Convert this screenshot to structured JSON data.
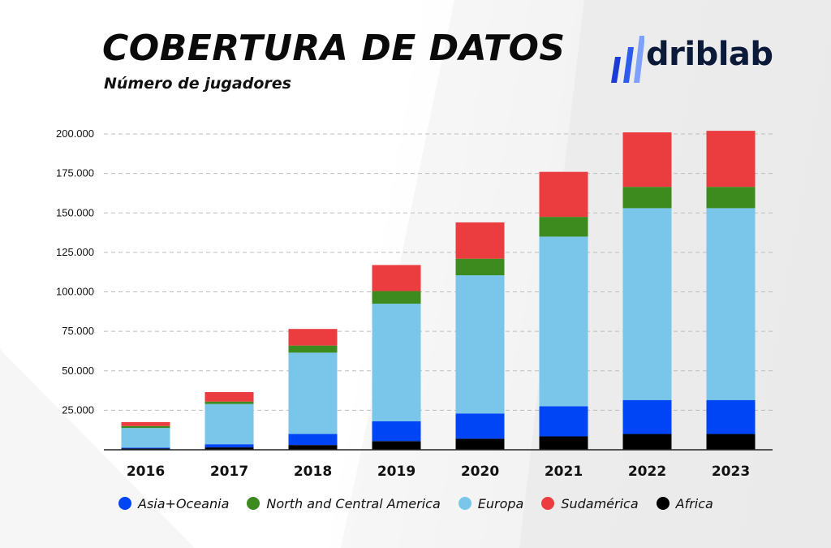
{
  "header": {
    "title": "COBERTURA DE DATOS",
    "subtitle": "Número de jugadores"
  },
  "logo": {
    "text": "driblab"
  },
  "chart_data": {
    "type": "bar",
    "stacked": true,
    "categories": [
      "2016",
      "2017",
      "2018",
      "2019",
      "2020",
      "2021",
      "2022",
      "2023"
    ],
    "series": [
      {
        "name": "Africa",
        "color": "#000000",
        "values": [
          800,
          1500,
          3000,
          5500,
          7000,
          8500,
          10000,
          10000
        ]
      },
      {
        "name": "Asia+Oceania",
        "color": "#0045F5",
        "values": [
          500,
          2000,
          7000,
          12500,
          16000,
          19000,
          21500,
          21500
        ]
      },
      {
        "name": "Europa",
        "color": "#79C6EA",
        "values": [
          12500,
          25500,
          51500,
          74500,
          87500,
          107500,
          121500,
          121500
        ]
      },
      {
        "name": "North and Central America",
        "color": "#3D8A1F",
        "values": [
          1200,
          1500,
          4500,
          8000,
          10500,
          12500,
          13500,
          13500
        ]
      },
      {
        "name": "Sudamérica",
        "color": "#EB3D3F",
        "values": [
          2500,
          6000,
          10500,
          16500,
          23000,
          28500,
          34500,
          35500
        ]
      }
    ],
    "legend_order": [
      "Asia+Oceania",
      "North and Central America",
      "Europa",
      "Sudamérica",
      "Africa"
    ],
    "yticks": [
      "25.000",
      "50.000",
      "75.000",
      "100.000",
      "125.000",
      "150.000",
      "175.000",
      "200.000"
    ],
    "ylim": [
      0,
      200000
    ],
    "grid": true,
    "legend_position": "bottom",
    "xlabel": "",
    "ylabel": ""
  }
}
